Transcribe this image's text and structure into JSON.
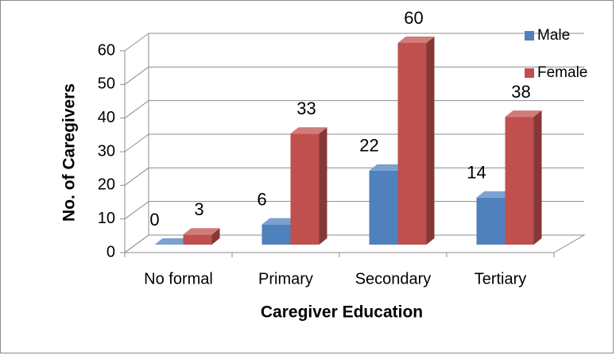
{
  "chart_data": {
    "type": "bar3d",
    "x_label": "Caregiver Education",
    "y_label": "No. of Caregivers",
    "categories": [
      "No formal",
      "Primary",
      "Secondary",
      "Tertiary"
    ],
    "series": [
      {
        "name": "Male",
        "color": "#4f81bd",
        "values": [
          0,
          6,
          22,
          14
        ]
      },
      {
        "name": "Female",
        "color": "#c0504d",
        "values": [
          3,
          33,
          60,
          38
        ]
      }
    ],
    "ylim": [
      0,
      60
    ],
    "yticks": [
      0,
      10,
      20,
      30,
      40,
      50,
      60
    ],
    "grid": true,
    "legend": "top-right"
  }
}
